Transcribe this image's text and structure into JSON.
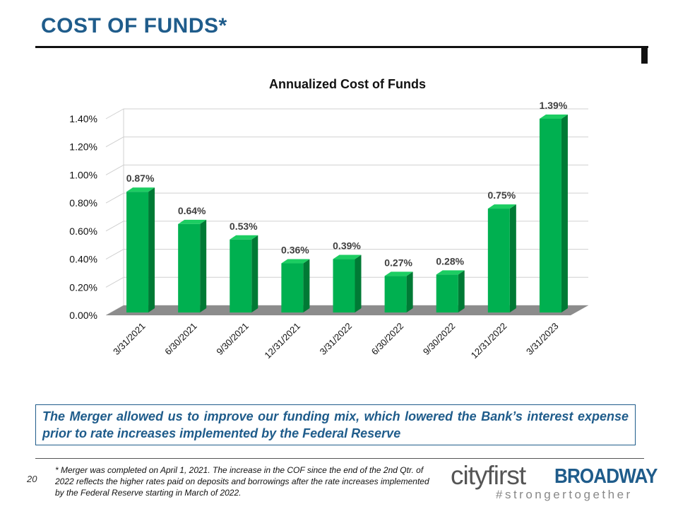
{
  "slide": {
    "title": "COST OF FUNDS*",
    "callout": "The Merger allowed us to improve our funding mix, which lowered the Bank’s interest expense prior to rate increases implemented by the Federal Reserve",
    "footnote": "* Merger was completed on April 1, 2021. The increase in the COF since the end of the 2nd Qtr. of 2022 reflects the higher rates paid on deposits and borrowings after the rate increases implemented by the Federal Reserve starting in March of 2022.",
    "page_number": "20",
    "logo": {
      "main": "cityfirst",
      "strong": "BROADWAY",
      "tagline": "#strongertogether"
    }
  },
  "colors": {
    "bar_front": "#00b050",
    "bar_side": "#007a35",
    "bar_top": "#1ccd62",
    "floor": "#8c8c8c",
    "title_blue": "#1f5c8b"
  },
  "chart_data": {
    "type": "bar",
    "title": "Annualized Cost of Funds",
    "categories": [
      "3/31/2021",
      "6/30/2021",
      "9/30/2021",
      "12/31/2021",
      "3/31/2022",
      "6/30/2022",
      "9/30/2022",
      "12/31/2022",
      "3/31/2023"
    ],
    "values": [
      0.87,
      0.64,
      0.53,
      0.36,
      0.39,
      0.27,
      0.28,
      0.75,
      1.39
    ],
    "data_labels": [
      "0.87%",
      "0.64%",
      "0.53%",
      "0.36%",
      "0.39%",
      "0.27%",
      "0.28%",
      "0.75%",
      "1.39%"
    ],
    "y_ticks": [
      "0.00%",
      "0.20%",
      "0.40%",
      "0.60%",
      "0.80%",
      "1.00%",
      "1.20%",
      "1.40%"
    ],
    "y_tick_values": [
      0,
      0.2,
      0.4,
      0.6,
      0.8,
      1.0,
      1.2,
      1.4
    ],
    "ylim": [
      0,
      1.4
    ],
    "xlabel": "",
    "ylabel": "",
    "grid": true,
    "legend": "none",
    "style": "3d"
  }
}
